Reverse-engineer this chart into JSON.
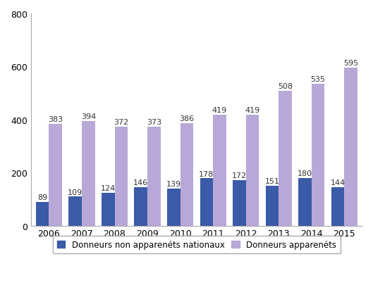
{
  "years": [
    2006,
    2007,
    2008,
    2009,
    2010,
    2011,
    2012,
    2013,
    2014,
    2015
  ],
  "non_apparentes": [
    89,
    109,
    124,
    146,
    139,
    178,
    172,
    151,
    180,
    144
  ],
  "apparentes": [
    383,
    394,
    372,
    373,
    386,
    419,
    419,
    508,
    535,
    595
  ],
  "color_non_apparentes": "#3B5AA8",
  "color_apparentes": "#B8A8D8",
  "ylim": [
    0,
    800
  ],
  "yticks": [
    0,
    200,
    400,
    600,
    800
  ],
  "legend_label_1": "Donneurs non apparenéts nationaux",
  "legend_label_2": "Donneurs apparenéts",
  "bar_width": 0.4,
  "tick_fontsize": 9,
  "legend_fontsize": 8.5,
  "value_fontsize": 8
}
